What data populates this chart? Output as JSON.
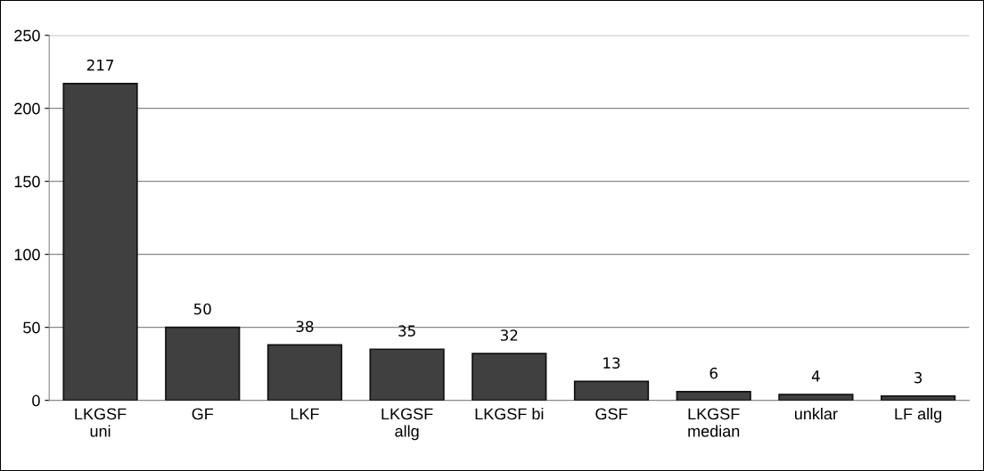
{
  "chart_data": {
    "type": "bar",
    "categories": [
      "LKGSF\nuni",
      "GF",
      "LKF",
      "LKGSF\nallg",
      "LKGSF bi",
      "GSF",
      "LKGSF\nmedian",
      "unklar",
      "LF allg"
    ],
    "values": [
      217,
      50,
      38,
      35,
      32,
      13,
      6,
      4,
      3
    ],
    "color": "#404040",
    "data_labels": true,
    "ylim": [
      0,
      250
    ],
    "yticks": [
      0,
      50,
      100,
      150,
      200,
      250
    ],
    "grid": "y",
    "legend": false
  }
}
